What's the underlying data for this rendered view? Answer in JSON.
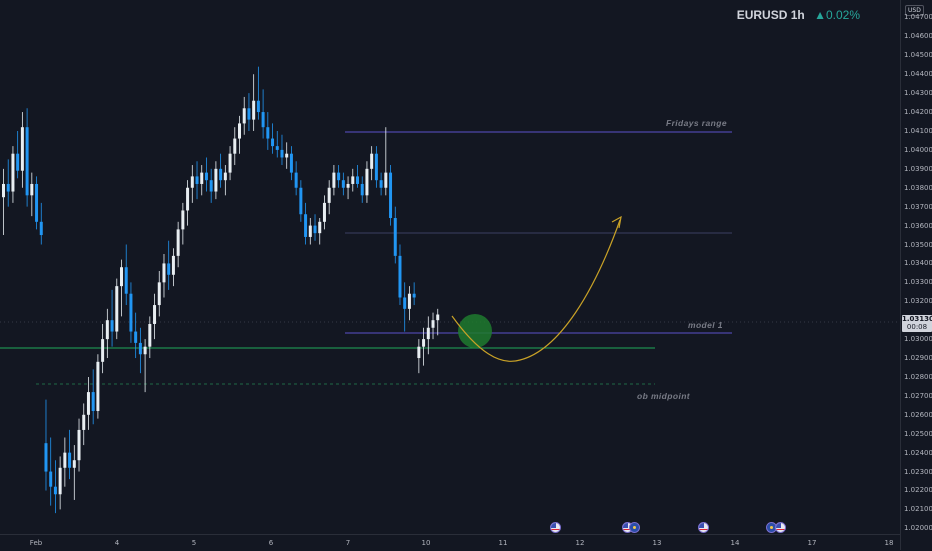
{
  "header": {
    "symbol": "EURUSD",
    "interval": "1h",
    "change": "▲0.02%"
  },
  "price_axis": {
    "currency": "USD",
    "labels": [
      "1.04700",
      "1.04600",
      "1.04500",
      "1.04400",
      "1.04300",
      "1.04200",
      "1.04100",
      "1.04000",
      "1.03900",
      "1.03800",
      "1.03700",
      "1.03600",
      "1.03500",
      "1.03400",
      "1.03300",
      "1.03200",
      "1.03100",
      "1.03000",
      "1.02900",
      "1.02800",
      "1.02700",
      "1.02600",
      "1.02500",
      "1.02400",
      "1.02300",
      "1.02200",
      "1.02100",
      "1.02000"
    ],
    "current_price": "1.03130",
    "countdown": "00:08"
  },
  "time_axis": {
    "labels": [
      "Feb",
      "4",
      "5",
      "6",
      "7",
      "10",
      "11",
      "12",
      "13",
      "14",
      "17",
      "18"
    ]
  },
  "annotations": {
    "fridays_range": "Fridays range",
    "model_1": "model 1",
    "ob_midpoint": "ob midpoint"
  },
  "events": [
    "us",
    "us",
    "eu",
    "us",
    "eu",
    "us"
  ],
  "colors": {
    "background": "#131722",
    "bull_candle": "#e8eef2",
    "bear_candle": "#2196f3",
    "range_line": "#5b52c9",
    "ob_line": "#1fa85a",
    "arrow": "#c9a227",
    "highlight": "#1e7a2e"
  },
  "chart_data": {
    "type": "candlestick",
    "ylim": [
      1.0197,
      1.0475
    ],
    "y_ticks": [
      1.047,
      1.046,
      1.045,
      1.044,
      1.043,
      1.042,
      1.041,
      1.04,
      1.039,
      1.038,
      1.037,
      1.036,
      1.035,
      1.034,
      1.033,
      1.032,
      1.031,
      1.03,
      1.029,
      1.028,
      1.027,
      1.026,
      1.025,
      1.024,
      1.023,
      1.022,
      1.021,
      1.02
    ],
    "candles": [
      [
        1.0375,
        1.039,
        1.0355,
        1.0382
      ],
      [
        1.0382,
        1.0395,
        1.037,
        1.0378
      ],
      [
        1.0378,
        1.0402,
        1.0372,
        1.0398
      ],
      [
        1.0398,
        1.041,
        1.0385,
        1.0389
      ],
      [
        1.0389,
        1.042,
        1.038,
        1.0412
      ],
      [
        1.0412,
        1.0422,
        1.037,
        1.0376
      ],
      [
        1.0376,
        1.0388,
        1.0365,
        1.0382
      ],
      [
        1.0382,
        1.0386,
        1.0358,
        1.0362
      ],
      [
        1.0362,
        1.0372,
        1.035,
        1.0355
      ],
      [
        1.0245,
        1.0268,
        1.022,
        1.023
      ],
      [
        1.023,
        1.0248,
        1.0212,
        1.0222
      ],
      [
        1.0222,
        1.0236,
        1.0208,
        1.0218
      ],
      [
        1.0218,
        1.0238,
        1.021,
        1.0232
      ],
      [
        1.0232,
        1.0248,
        1.0222,
        1.024
      ],
      [
        1.024,
        1.0252,
        1.0226,
        1.0232
      ],
      [
        1.0232,
        1.0244,
        1.0215,
        1.0236
      ],
      [
        1.0236,
        1.0258,
        1.023,
        1.0252
      ],
      [
        1.0252,
        1.0266,
        1.0244,
        1.026
      ],
      [
        1.026,
        1.028,
        1.0252,
        1.0272
      ],
      [
        1.0272,
        1.0284,
        1.0255,
        1.0262
      ],
      [
        1.0262,
        1.0292,
        1.0258,
        1.0288
      ],
      [
        1.0288,
        1.0308,
        1.0282,
        1.03
      ],
      [
        1.03,
        1.0316,
        1.029,
        1.031
      ],
      [
        1.031,
        1.0326,
        1.0296,
        1.0304
      ],
      [
        1.0304,
        1.0332,
        1.03,
        1.0328
      ],
      [
        1.0328,
        1.0342,
        1.0312,
        1.0338
      ],
      [
        1.0338,
        1.035,
        1.0318,
        1.0324
      ],
      [
        1.0324,
        1.033,
        1.0298,
        1.0304
      ],
      [
        1.0304,
        1.0314,
        1.029,
        1.0298
      ],
      [
        1.0298,
        1.0306,
        1.0282,
        1.0292
      ],
      [
        1.0292,
        1.03,
        1.0272,
        1.0296
      ],
      [
        1.0296,
        1.0312,
        1.029,
        1.0308
      ],
      [
        1.0308,
        1.0324,
        1.03,
        1.0318
      ],
      [
        1.0318,
        1.0336,
        1.0312,
        1.033
      ],
      [
        1.033,
        1.0345,
        1.0322,
        1.034
      ],
      [
        1.034,
        1.0352,
        1.0326,
        1.0334
      ],
      [
        1.0334,
        1.0348,
        1.0328,
        1.0344
      ],
      [
        1.0344,
        1.0362,
        1.0338,
        1.0358
      ],
      [
        1.0358,
        1.0372,
        1.035,
        1.0368
      ],
      [
        1.0368,
        1.0384,
        1.036,
        1.038
      ],
      [
        1.038,
        1.0392,
        1.0372,
        1.0386
      ],
      [
        1.0386,
        1.0394,
        1.0374,
        1.0382
      ],
      [
        1.0382,
        1.0392,
        1.0376,
        1.0388
      ],
      [
        1.0388,
        1.0396,
        1.0378,
        1.0384
      ],
      [
        1.0384,
        1.039,
        1.0372,
        1.0378
      ],
      [
        1.0378,
        1.0394,
        1.0374,
        1.039
      ],
      [
        1.039,
        1.0398,
        1.038,
        1.0384
      ],
      [
        1.0384,
        1.0392,
        1.0376,
        1.0388
      ],
      [
        1.0388,
        1.0402,
        1.0384,
        1.0398
      ],
      [
        1.0398,
        1.0412,
        1.0392,
        1.0406
      ],
      [
        1.0406,
        1.0418,
        1.0398,
        1.0414
      ],
      [
        1.0414,
        1.0428,
        1.0408,
        1.0422
      ],
      [
        1.0422,
        1.043,
        1.041,
        1.0416
      ],
      [
        1.0416,
        1.044,
        1.041,
        1.0426
      ],
      [
        1.0426,
        1.0444,
        1.0416,
        1.042
      ],
      [
        1.042,
        1.0432,
        1.0406,
        1.0412
      ],
      [
        1.0412,
        1.042,
        1.04,
        1.0406
      ],
      [
        1.0406,
        1.0414,
        1.0398,
        1.0402
      ],
      [
        1.0402,
        1.041,
        1.0396,
        1.04
      ],
      [
        1.04,
        1.0408,
        1.0392,
        1.0396
      ],
      [
        1.0396,
        1.0404,
        1.039,
        1.0398
      ],
      [
        1.0398,
        1.0402,
        1.0384,
        1.0388
      ],
      [
        1.0388,
        1.0394,
        1.0376,
        1.038
      ],
      [
        1.038,
        1.0384,
        1.0362,
        1.0366
      ],
      [
        1.0366,
        1.0372,
        1.035,
        1.0354
      ],
      [
        1.0354,
        1.0364,
        1.035,
        1.036
      ],
      [
        1.036,
        1.0366,
        1.0352,
        1.0356
      ],
      [
        1.0356,
        1.0364,
        1.035,
        1.0362
      ],
      [
        1.0362,
        1.0376,
        1.0358,
        1.0372
      ],
      [
        1.0372,
        1.0384,
        1.0366,
        1.038
      ],
      [
        1.038,
        1.0392,
        1.0376,
        1.0388
      ],
      [
        1.0388,
        1.0392,
        1.038,
        1.0384
      ],
      [
        1.0384,
        1.0388,
        1.0376,
        1.038
      ],
      [
        1.038,
        1.0386,
        1.0374,
        1.0382
      ],
      [
        1.0382,
        1.039,
        1.0378,
        1.0386
      ],
      [
        1.0386,
        1.0392,
        1.038,
        1.0382
      ],
      [
        1.0382,
        1.0386,
        1.0372,
        1.0376
      ],
      [
        1.0376,
        1.0394,
        1.0372,
        1.039
      ],
      [
        1.039,
        1.0402,
        1.0384,
        1.0398
      ],
      [
        1.0398,
        1.0402,
        1.038,
        1.0384
      ],
      [
        1.0384,
        1.0388,
        1.0376,
        1.038
      ],
      [
        1.038,
        1.0412,
        1.0376,
        1.0388
      ],
      [
        1.0388,
        1.0392,
        1.036,
        1.0364
      ],
      [
        1.0364,
        1.037,
        1.034,
        1.0344
      ],
      [
        1.0344,
        1.035,
        1.0318,
        1.0322
      ],
      [
        1.0322,
        1.033,
        1.0304,
        1.0316
      ],
      [
        1.0316,
        1.0328,
        1.031,
        1.0324
      ],
      [
        1.0324,
        1.033,
        1.0318,
        1.0322
      ],
      [
        1.029,
        1.03,
        1.0282,
        1.0296
      ],
      [
        1.0296,
        1.0306,
        1.0286,
        1.03
      ],
      [
        1.03,
        1.0312,
        1.0292,
        1.0306
      ],
      [
        1.0306,
        1.0314,
        1.03,
        1.031
      ],
      [
        1.031,
        1.0316,
        1.0302,
        1.0313
      ]
    ],
    "x_slots": 93,
    "levels": [
      {
        "name": "Fridays range",
        "price": 1.0412
      },
      {
        "name": "",
        "price": 1.036
      },
      {
        "name": "model 1",
        "price": 1.03048
      },
      {
        "name": "",
        "price": 1.02985
      },
      {
        "name": "ob midpoint",
        "price": 1.0279
      }
    ]
  }
}
